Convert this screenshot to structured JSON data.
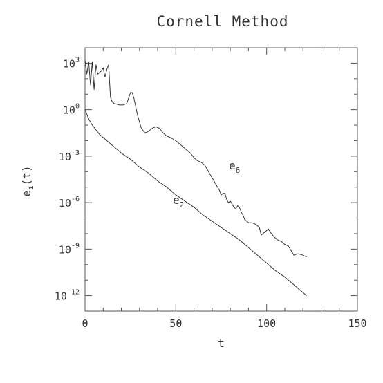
{
  "chart_data": {
    "type": "line",
    "title": "Cornell Method",
    "xlabel": "t",
    "ylabel": "e",
    "ylabel_sub": "i",
    "ylabel_tail": "(t)",
    "xlim": [
      0,
      150
    ],
    "ylim_log10": [
      -13,
      4
    ],
    "yscale": "log",
    "x_ticks": [
      "0",
      "50",
      "100",
      "150"
    ],
    "y_ticks": [
      {
        "base": "10",
        "exp": "3"
      },
      {
        "base": "10",
        "exp": "0"
      },
      {
        "base": "10",
        "exp": "-3"
      },
      {
        "base": "10",
        "exp": "-6"
      },
      {
        "base": "10",
        "exp": "-9"
      },
      {
        "base": "10",
        "exp": "-12"
      }
    ],
    "grid": false,
    "series": [
      {
        "name": "e6",
        "label_base": "e",
        "label_sub": "6",
        "color": "#333333",
        "points": [
          [
            0,
            3.2
          ],
          [
            1,
            2.3
          ],
          [
            2,
            3.1
          ],
          [
            3,
            1.6
          ],
          [
            4,
            3.1
          ],
          [
            5,
            1.3
          ],
          [
            6,
            2.9
          ],
          [
            7,
            2.3
          ],
          [
            8,
            2.4
          ],
          [
            9,
            2.5
          ],
          [
            10,
            2.7
          ],
          [
            11,
            2.1
          ],
          [
            12,
            2.6
          ],
          [
            13,
            2.9
          ],
          [
            14,
            0.8
          ],
          [
            15,
            0.5
          ],
          [
            16,
            0.4
          ],
          [
            19,
            0.3
          ],
          [
            21,
            0.3
          ],
          [
            23,
            0.4
          ],
          [
            25,
            1.1
          ],
          [
            26,
            1.1
          ],
          [
            27,
            0.7
          ],
          [
            29,
            -0.4
          ],
          [
            31,
            -1.2
          ],
          [
            33,
            -1.5
          ],
          [
            35,
            -1.4
          ],
          [
            37,
            -1.2
          ],
          [
            39,
            -1.1
          ],
          [
            41,
            -1.2
          ],
          [
            43,
            -1.5
          ],
          [
            45,
            -1.7
          ],
          [
            47,
            -1.8
          ],
          [
            50,
            -2.0
          ],
          [
            53,
            -2.3
          ],
          [
            55,
            -2.5
          ],
          [
            58,
            -2.8
          ],
          [
            60,
            -3.1
          ],
          [
            62,
            -3.3
          ],
          [
            64,
            -3.4
          ],
          [
            66,
            -3.6
          ],
          [
            68,
            -4.0
          ],
          [
            70,
            -4.4
          ],
          [
            72,
            -4.8
          ],
          [
            74,
            -5.2
          ],
          [
            75,
            -5.5
          ],
          [
            76,
            -5.4
          ],
          [
            77,
            -5.4
          ],
          [
            78,
            -5.8
          ],
          [
            79,
            -6.0
          ],
          [
            80,
            -5.9
          ],
          [
            81,
            -6.1
          ],
          [
            82,
            -6.3
          ],
          [
            83,
            -6.4
          ],
          [
            84,
            -6.2
          ],
          [
            85,
            -6.3
          ],
          [
            86,
            -6.6
          ],
          [
            87,
            -6.8
          ],
          [
            88,
            -7.1
          ],
          [
            90,
            -7.3
          ],
          [
            92,
            -7.3
          ],
          [
            94,
            -7.4
          ],
          [
            96,
            -7.6
          ],
          [
            97,
            -8.1
          ],
          [
            98,
            -8.0
          ],
          [
            100,
            -7.8
          ],
          [
            101,
            -7.7
          ],
          [
            102,
            -7.9
          ],
          [
            104,
            -8.2
          ],
          [
            106,
            -8.4
          ],
          [
            108,
            -8.5
          ],
          [
            110,
            -8.7
          ],
          [
            112,
            -8.8
          ],
          [
            114,
            -9.2
          ],
          [
            115,
            -9.4
          ],
          [
            117,
            -9.3
          ],
          [
            119,
            -9.35
          ],
          [
            122,
            -9.5
          ]
        ]
      },
      {
        "name": "e2",
        "label_base": "e",
        "label_sub": "2",
        "color": "#333333",
        "points": [
          [
            0,
            0.0
          ],
          [
            2,
            -0.6
          ],
          [
            4,
            -1.0
          ],
          [
            6,
            -1.3
          ],
          [
            8,
            -1.6
          ],
          [
            10,
            -1.8
          ],
          [
            12,
            -2.0
          ],
          [
            15,
            -2.3
          ],
          [
            20,
            -2.8
          ],
          [
            25,
            -3.2
          ],
          [
            30,
            -3.7
          ],
          [
            35,
            -4.1
          ],
          [
            40,
            -4.6
          ],
          [
            45,
            -5.0
          ],
          [
            50,
            -5.5
          ],
          [
            55,
            -5.9
          ],
          [
            60,
            -6.3
          ],
          [
            65,
            -6.8
          ],
          [
            70,
            -7.2
          ],
          [
            75,
            -7.6
          ],
          [
            80,
            -8.0
          ],
          [
            85,
            -8.4
          ],
          [
            90,
            -8.9
          ],
          [
            95,
            -9.4
          ],
          [
            100,
            -9.9
          ],
          [
            105,
            -10.4
          ],
          [
            110,
            -10.8
          ],
          [
            115,
            -11.3
          ],
          [
            122,
            -12.0
          ]
        ]
      }
    ]
  }
}
